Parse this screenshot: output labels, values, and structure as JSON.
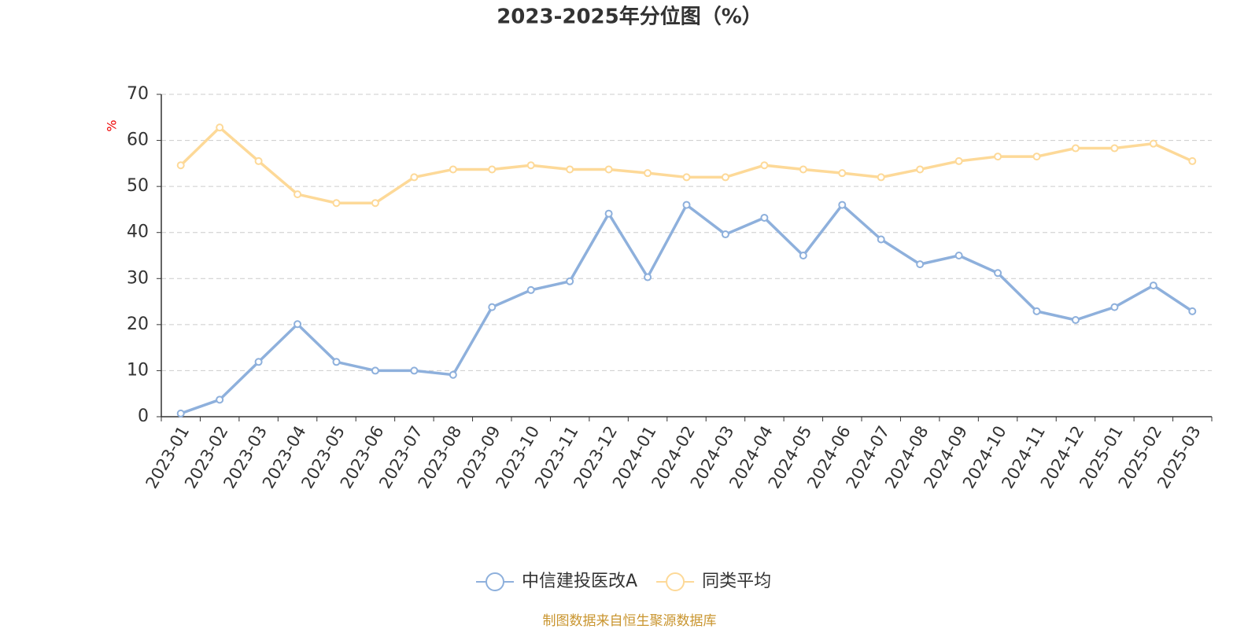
{
  "chart_data": {
    "type": "line",
    "title": "2023-2025年分位图（%）",
    "y_label": "%",
    "categories": [
      "2023-01",
      "2023-02",
      "2023-03",
      "2023-04",
      "2023-05",
      "2023-06",
      "2023-07",
      "2023-08",
      "2023-09",
      "2023-10",
      "2023-11",
      "2023-12",
      "2024-01",
      "2024-02",
      "2024-03",
      "2024-04",
      "2024-05",
      "2024-06",
      "2024-07",
      "2024-08",
      "2024-09",
      "2024-10",
      "2024-11",
      "2024-12",
      "2025-01",
      "2025-02",
      "2025-03"
    ],
    "series": [
      {
        "name": "中信建投医改A",
        "color": "#8eb0dc",
        "values": [
          0.7,
          3.7,
          11.9,
          20.1,
          11.9,
          10,
          10,
          9.1,
          23.8,
          27.5,
          29.4,
          44.1,
          30.3,
          46,
          39.6,
          43.2,
          35,
          46,
          38.5,
          33.1,
          35,
          31.2,
          22.9,
          21,
          23.8,
          28.5,
          22.9
        ]
      },
      {
        "name": "同类平均",
        "color": "#fdd998",
        "values": [
          54.6,
          62.8,
          55.5,
          48.3,
          46.4,
          46.4,
          52,
          53.7,
          53.7,
          54.6,
          53.7,
          53.7,
          52.9,
          52,
          52,
          54.6,
          53.7,
          52.9,
          52,
          53.7,
          55.5,
          56.5,
          56.5,
          58.3,
          58.3,
          59.3,
          55.5
        ]
      }
    ],
    "ylim": [
      0,
      70
    ],
    "yticks": [
      0,
      10,
      20,
      30,
      40,
      50,
      60,
      70
    ],
    "grid": true,
    "legend": "bottom",
    "source": "制图数据来自恒生聚源数据库"
  }
}
